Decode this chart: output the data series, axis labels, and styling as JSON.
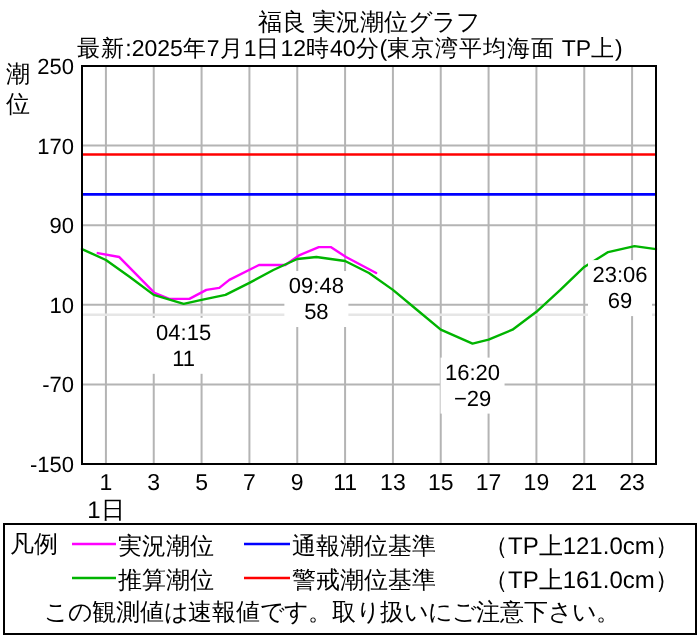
{
  "chart_data": {
    "type": "line",
    "title": "福良 実況潮位グラフ",
    "subtitle": "最新:2025年7月1日12時40分(東京湾平均海面 TP上)",
    "ylabel": "潮位",
    "xlabel": "1日",
    "legend_title": "凡例",
    "series": [
      {
        "name": "実況潮位",
        "color": "#ff00ff",
        "x": [
          0.66,
          1.56,
          3.03,
          3.65,
          4.49,
          5.2,
          5.74,
          6.16,
          7.4,
          8.5,
          9.1,
          9.9,
          10.4,
          11.04,
          12.3
        ],
        "values": [
          62,
          58,
          22,
          16,
          16,
          25,
          27,
          35,
          50,
          50,
          60,
          68,
          68,
          58,
          42
        ]
      },
      {
        "name": "推算潮位",
        "color": "#00b400",
        "x": [
          0,
          1,
          2,
          3,
          4.25,
          5,
          6,
          7,
          8,
          9,
          9.8,
          11,
          12,
          13,
          14,
          15,
          16.33,
          17,
          18,
          19,
          20,
          21,
          22,
          23.1,
          24
        ],
        "values": [
          66,
          55,
          38,
          20,
          11,
          15,
          20,
          32,
          45,
          56,
          58,
          54,
          42,
          25,
          5,
          -15,
          -29,
          -25,
          -15,
          3,
          25,
          48,
          63,
          69,
          66
        ]
      }
    ],
    "annotations": [
      {
        "text": "04:15\n11",
        "x": 4.25,
        "y": 11
      },
      {
        "text": "09:48\n58",
        "x": 9.8,
        "y": 58
      },
      {
        "text": "16:20\n−29",
        "x": 16.33,
        "y": -29
      },
      {
        "text": "23:06\n69",
        "x": 23.1,
        "y": 69
      },
      "この観測値は速報値です。取り扱いにご注意下さい。"
    ],
    "ref_lines": [
      {
        "axis": "y",
        "value": 121,
        "label": "通報潮位基準　　（TP上121.0cm）",
        "color": "#0000ff"
      },
      {
        "axis": "y",
        "value": 161,
        "label": "警戒潮位基準　　（TP上161.0cm）",
        "color": "#ff0000"
      },
      {
        "axis": "y",
        "value": 0,
        "color": "#e6e6e6"
      }
    ],
    "xlim": [
      0,
      24
    ],
    "ylim": [
      -150,
      250
    ],
    "xticks": [
      1,
      3,
      5,
      7,
      9,
      11,
      13,
      15,
      17,
      19,
      21,
      23
    ],
    "yticks": [
      250,
      170,
      90,
      10,
      -70,
      -150
    ],
    "grid": true,
    "legend": "bottom"
  }
}
